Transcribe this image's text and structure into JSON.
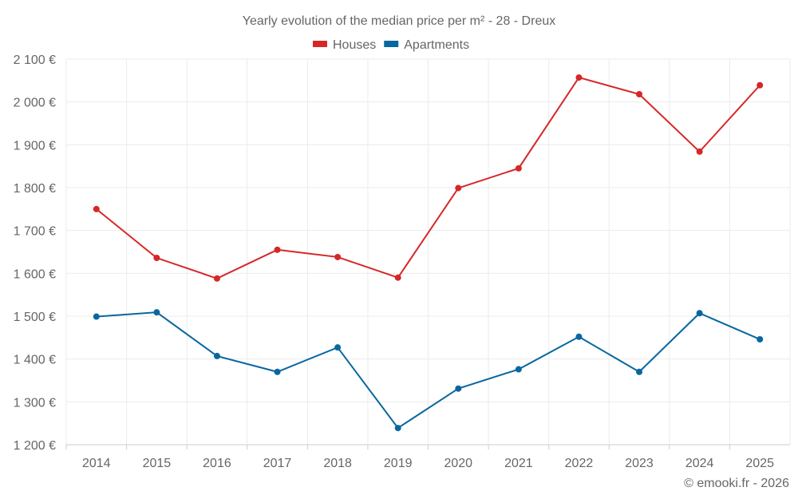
{
  "chart_data": {
    "type": "line",
    "title": "Yearly evolution of the median price per m² - 28 - Dreux",
    "xlabel": "",
    "ylabel": "",
    "categories": [
      "2014",
      "2015",
      "2016",
      "2017",
      "2018",
      "2019",
      "2020",
      "2021",
      "2022",
      "2023",
      "2024",
      "2025"
    ],
    "ylim": [
      1200,
      2100
    ],
    "yticks": [
      1200,
      1300,
      1400,
      1500,
      1600,
      1700,
      1800,
      1900,
      2000,
      2100
    ],
    "ytick_labels": [
      "1 200 €",
      "1 300 €",
      "1 400 €",
      "1 500 €",
      "1 600 €",
      "1 700 €",
      "1 800 €",
      "1 900 €",
      "2 000 €",
      "2 100 €"
    ],
    "grid": true,
    "legend_position": "top-center",
    "series": [
      {
        "name": "Houses",
        "color": "#d62728",
        "values": [
          1750,
          1636,
          1588,
          1655,
          1638,
          1590,
          1799,
          1845,
          2057,
          2018,
          1884,
          2039
        ]
      },
      {
        "name": "Apartments",
        "color": "#08679f",
        "values": [
          1499,
          1509,
          1407,
          1370,
          1427,
          1239,
          1331,
          1376,
          1452,
          1370,
          1507,
          1446
        ]
      }
    ]
  },
  "footer": "© emooki.fr - 2026"
}
